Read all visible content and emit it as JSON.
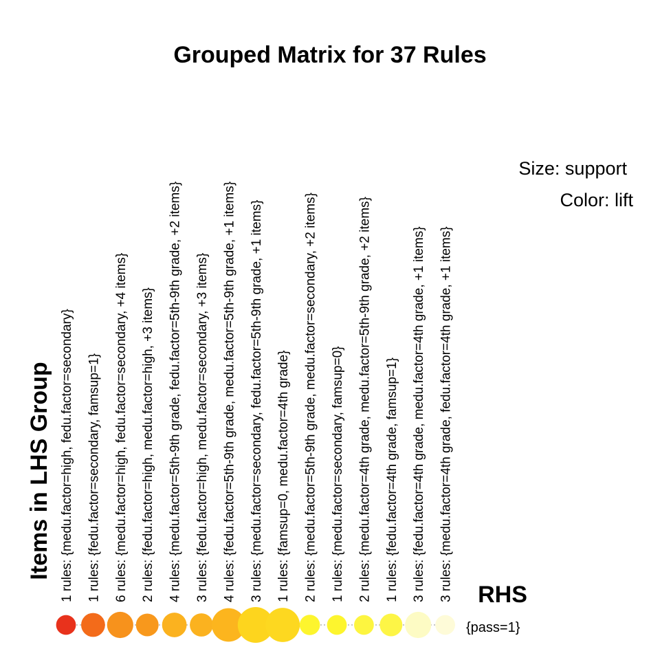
{
  "chart_data": {
    "type": "scatter",
    "title": "Grouped Matrix for 37 Rules",
    "ylabel": "Items in LHS Group",
    "xlabel": "RHS",
    "legend": {
      "size": "Size: support",
      "color": "Color: lift"
    },
    "rhs": [
      "{pass=1}"
    ],
    "groups": [
      {
        "label": "1 rules: {medu.factor=high, fedu.factor=secondary}",
        "support": 0.2,
        "lift": 1.0,
        "color": "#e8321c"
      },
      {
        "label": "1 rules: {fedu.factor=secondary, famsup=1}",
        "support": 0.35,
        "lift": 0.9,
        "color": "#f36b1a"
      },
      {
        "label": "6 rules: {medu.factor=high, fedu.factor=secondary, +4 items}",
        "support": 0.45,
        "lift": 0.82,
        "color": "#f7921c"
      },
      {
        "label": "2 rules: {fedu.factor=high, medu.factor=high, +3 items}",
        "support": 0.3,
        "lift": 0.8,
        "color": "#f8981c"
      },
      {
        "label": "4 rules: {medu.factor=5th-9th grade, fedu.factor=5th-9th grade, +2 items}",
        "support": 0.38,
        "lift": 0.72,
        "color": "#fbb21f"
      },
      {
        "label": "3 rules: {fedu.factor=high, medu.factor=secondary, +3 items}",
        "support": 0.32,
        "lift": 0.72,
        "color": "#fbb21f"
      },
      {
        "label": "4 rules: {fedu.factor=5th-9th grade, medu.factor=5th-9th grade, +1 items}",
        "support": 0.85,
        "lift": 0.7,
        "color": "#fcb51e"
      },
      {
        "label": "3 rules: {medu.factor=secondary, fedu.factor=5th-9th grade, +1 items}",
        "support": 1.0,
        "lift": 0.6,
        "color": "#fdd51e"
      },
      {
        "label": "1 rules: {famsup=0, medu.factor=4th grade}",
        "support": 0.9,
        "lift": 0.6,
        "color": "#fdd820"
      },
      {
        "label": "2 rules: {medu.factor=5th-9th grade, medu.factor=secondary, +2 items}",
        "support": 0.22,
        "lift": 0.5,
        "color": "#fdf52e"
      },
      {
        "label": "1 rules: {medu.factor=secondary, famsup=0}",
        "support": 0.2,
        "lift": 0.5,
        "color": "#fdf52e"
      },
      {
        "label": "2 rules: {medu.factor=4th grade, medu.factor=5th-9th grade, +2 items}",
        "support": 0.2,
        "lift": 0.48,
        "color": "#fdf540"
      },
      {
        "label": "1 rules: {fedu.factor=4th grade, famsup=1}",
        "support": 0.3,
        "lift": 0.45,
        "color": "#fdf546"
      },
      {
        "label": "3 rules: {fedu.factor=4th grade, medu.factor=4th grade, +1 items}",
        "support": 0.45,
        "lift": 0.2,
        "color": "#fdfbc4"
      },
      {
        "label": "3 rules: {medu.factor=4th grade, fedu.factor=4th grade, +1 items}",
        "support": 0.2,
        "lift": 0.1,
        "color": "#fefbd8"
      }
    ]
  }
}
